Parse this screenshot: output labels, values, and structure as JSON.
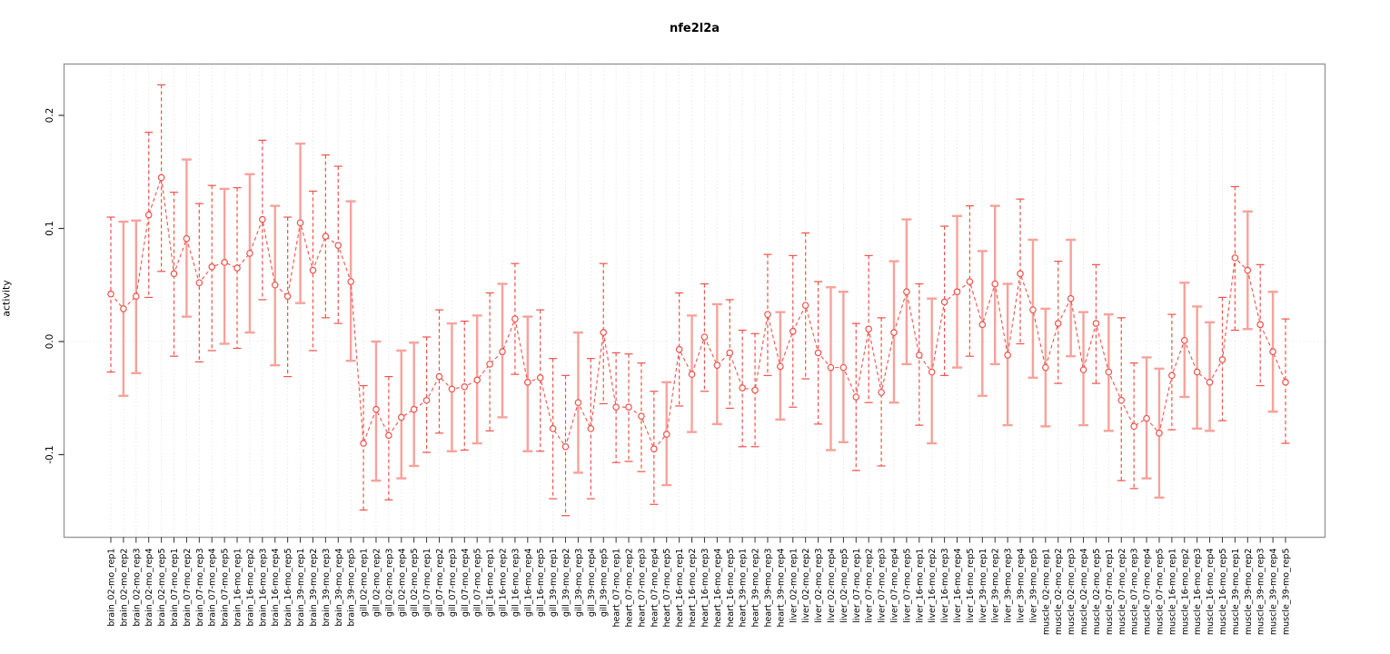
{
  "colors": {
    "series": "#F0524A",
    "series_light": "#F7A29B",
    "frame": "#999999",
    "axis": "#333333",
    "grid": "#DEDEDE",
    "zero_line": "#E3E3E3",
    "background": "#FFFFFF",
    "text": "#000000"
  },
  "chart_data": {
    "type": "scatter",
    "title": "nfe2l2a",
    "xlabel": "",
    "ylabel": "activity",
    "ylim": [
      -0.173,
      0.245
    ],
    "yticks": [
      -0.1,
      0.0,
      0.1,
      0.2
    ],
    "ytick_labels": [
      "-0.1",
      "0.0",
      "0.1",
      "0.2"
    ],
    "grid": "vertical dotted line per category; dotted horizontal line at y=0",
    "legend": "none",
    "error_bars": true,
    "series_style": "open red circles connected by dashed red line, vertical error bars with end caps",
    "points": [
      {
        "label": "brain_02-mo_rep1",
        "value": 0.042,
        "lo": -0.027,
        "hi": 0.11,
        "bar": "dashed"
      },
      {
        "label": "brain_02-mo_rep2",
        "value": 0.029,
        "lo": -0.048,
        "hi": 0.106,
        "bar": "light"
      },
      {
        "label": "brain_02-mo_rep3",
        "value": 0.04,
        "lo": -0.028,
        "hi": 0.107,
        "bar": "light"
      },
      {
        "label": "brain_02-mo_rep4",
        "value": 0.112,
        "lo": 0.039,
        "hi": 0.185,
        "bar": "dashed"
      },
      {
        "label": "brain_02-mo_rep5",
        "value": 0.145,
        "lo": 0.062,
        "hi": 0.227,
        "bar": "dashed"
      },
      {
        "label": "brain_07-mo_rep1",
        "value": 0.06,
        "lo": -0.013,
        "hi": 0.132,
        "bar": "dashed"
      },
      {
        "label": "brain_07-mo_rep2",
        "value": 0.091,
        "lo": 0.022,
        "hi": 0.161,
        "bar": "light"
      },
      {
        "label": "brain_07-mo_rep3",
        "value": 0.052,
        "lo": -0.018,
        "hi": 0.122,
        "bar": "dashed"
      },
      {
        "label": "brain_07-mo_rep4",
        "value": 0.066,
        "lo": -0.008,
        "hi": 0.138,
        "bar": "dashed"
      },
      {
        "label": "brain_07-mo_rep5",
        "value": 0.07,
        "lo": -0.002,
        "hi": 0.135,
        "bar": "light"
      },
      {
        "label": "brain_16-mo_rep1",
        "value": 0.065,
        "lo": -0.006,
        "hi": 0.136,
        "bar": "dashed"
      },
      {
        "label": "brain_16-mo_rep2",
        "value": 0.078,
        "lo": 0.008,
        "hi": 0.148,
        "bar": "light"
      },
      {
        "label": "brain_16-mo_rep3",
        "value": 0.108,
        "lo": 0.037,
        "hi": 0.178,
        "bar": "dashed"
      },
      {
        "label": "brain_16-mo_rep4",
        "value": 0.05,
        "lo": -0.021,
        "hi": 0.12,
        "bar": "light"
      },
      {
        "label": "brain_16-mo_rep5",
        "value": 0.04,
        "lo": -0.031,
        "hi": 0.11,
        "bar": "dashed"
      },
      {
        "label": "brain_39-mo_rep1",
        "value": 0.105,
        "lo": 0.034,
        "hi": 0.175,
        "bar": "light"
      },
      {
        "label": "brain_39-mo_rep2",
        "value": 0.063,
        "lo": -0.008,
        "hi": 0.133,
        "bar": "dashed"
      },
      {
        "label": "brain_39-mo_rep3",
        "value": 0.093,
        "lo": 0.021,
        "hi": 0.165,
        "bar": "dashed"
      },
      {
        "label": "brain_39-mo_rep4",
        "value": 0.085,
        "lo": 0.016,
        "hi": 0.155,
        "bar": "dashed"
      },
      {
        "label": "brain_39-mo_rep5",
        "value": 0.053,
        "lo": -0.017,
        "hi": 0.124,
        "bar": "light"
      },
      {
        "label": "gill_02-mo_rep1",
        "value": -0.09,
        "lo": -0.149,
        "hi": -0.039,
        "bar": "dashed"
      },
      {
        "label": "gill_02-mo_rep2",
        "value": -0.06,
        "lo": -0.123,
        "hi": 0.0,
        "bar": "light"
      },
      {
        "label": "gill_02-mo_rep3",
        "value": -0.083,
        "lo": -0.14,
        "hi": -0.031,
        "bar": "dashed"
      },
      {
        "label": "gill_02-mo_rep4",
        "value": -0.067,
        "lo": -0.121,
        "hi": -0.008,
        "bar": "light"
      },
      {
        "label": "gill_02-mo_rep5",
        "value": -0.06,
        "lo": -0.11,
        "hi": -0.001,
        "bar": "light"
      },
      {
        "label": "gill_07-mo_rep1",
        "value": -0.052,
        "lo": -0.098,
        "hi": 0.004,
        "bar": "dashed"
      },
      {
        "label": "gill_07-mo_rep2",
        "value": -0.031,
        "lo": -0.081,
        "hi": 0.028,
        "bar": "dashed"
      },
      {
        "label": "gill_07-mo_rep3",
        "value": -0.042,
        "lo": -0.097,
        "hi": 0.016,
        "bar": "light"
      },
      {
        "label": "gill_07-mo_rep4",
        "value": -0.04,
        "lo": -0.096,
        "hi": 0.018,
        "bar": "dashed"
      },
      {
        "label": "gill_07-mo_rep5",
        "value": -0.034,
        "lo": -0.09,
        "hi": 0.023,
        "bar": "light"
      },
      {
        "label": "gill_16-mo_rep1",
        "value": -0.02,
        "lo": -0.079,
        "hi": 0.043,
        "bar": "dashed"
      },
      {
        "label": "gill_16-mo_rep2",
        "value": -0.009,
        "lo": -0.067,
        "hi": 0.051,
        "bar": "light"
      },
      {
        "label": "gill_16-mo_rep3",
        "value": 0.02,
        "lo": -0.029,
        "hi": 0.069,
        "bar": "dashed"
      },
      {
        "label": "gill_16-mo_rep4",
        "value": -0.036,
        "lo": -0.097,
        "hi": 0.022,
        "bar": "light"
      },
      {
        "label": "gill_16-mo_rep5",
        "value": -0.032,
        "lo": -0.097,
        "hi": 0.028,
        "bar": "dashed"
      },
      {
        "label": "gill_39-mo_rep1",
        "value": -0.077,
        "lo": -0.139,
        "hi": -0.015,
        "bar": "dashed"
      },
      {
        "label": "gill_39-mo_rep2",
        "value": -0.093,
        "lo": -0.154,
        "hi": -0.03,
        "bar": "dashed"
      },
      {
        "label": "gill_39-mo_rep3",
        "value": -0.054,
        "lo": -0.116,
        "hi": 0.008,
        "bar": "light"
      },
      {
        "label": "gill_39-mo_rep4",
        "value": -0.077,
        "lo": -0.139,
        "hi": -0.015,
        "bar": "dashed"
      },
      {
        "label": "gill_39-mo_rep5",
        "value": 0.008,
        "lo": -0.055,
        "hi": 0.069,
        "bar": "dashed"
      },
      {
        "label": "heart_07-mo_rep1",
        "value": -0.058,
        "lo": -0.107,
        "hi": -0.01,
        "bar": "dashed"
      },
      {
        "label": "heart_07-mo_rep2",
        "value": -0.058,
        "lo": -0.106,
        "hi": -0.011,
        "bar": "dashed"
      },
      {
        "label": "heart_07-mo_rep3",
        "value": -0.066,
        "lo": -0.115,
        "hi": -0.019,
        "bar": "dashed"
      },
      {
        "label": "heart_07-mo_rep4",
        "value": -0.095,
        "lo": -0.144,
        "hi": -0.044,
        "bar": "dashed"
      },
      {
        "label": "heart_07-mo_rep5",
        "value": -0.082,
        "lo": -0.127,
        "hi": -0.036,
        "bar": "light"
      },
      {
        "label": "heart_16-mo_rep1",
        "value": -0.007,
        "lo": -0.057,
        "hi": 0.043,
        "bar": "dashed"
      },
      {
        "label": "heart_16-mo_rep2",
        "value": -0.029,
        "lo": -0.08,
        "hi": 0.023,
        "bar": "light"
      },
      {
        "label": "heart_16-mo_rep3",
        "value": 0.004,
        "lo": -0.044,
        "hi": 0.051,
        "bar": "dashed"
      },
      {
        "label": "heart_16-mo_rep4",
        "value": -0.021,
        "lo": -0.073,
        "hi": 0.033,
        "bar": "light"
      },
      {
        "label": "heart_16-mo_rep5",
        "value": -0.01,
        "lo": -0.059,
        "hi": 0.037,
        "bar": "dashed"
      },
      {
        "label": "heart_39-mo_rep1",
        "value": -0.041,
        "lo": -0.093,
        "hi": 0.01,
        "bar": "dashed"
      },
      {
        "label": "heart_39-mo_rep2",
        "value": -0.043,
        "lo": -0.093,
        "hi": 0.007,
        "bar": "dashed"
      },
      {
        "label": "heart_39-mo_rep3",
        "value": 0.024,
        "lo": -0.03,
        "hi": 0.077,
        "bar": "dashed"
      },
      {
        "label": "heart_39-mo_rep4",
        "value": -0.022,
        "lo": -0.069,
        "hi": 0.026,
        "bar": "light"
      },
      {
        "label": "liver_02-mo_rep1",
        "value": 0.009,
        "lo": -0.058,
        "hi": 0.076,
        "bar": "dashed"
      },
      {
        "label": "liver_02-mo_rep2",
        "value": 0.032,
        "lo": -0.033,
        "hi": 0.096,
        "bar": "dashed"
      },
      {
        "label": "liver_02-mo_rep3",
        "value": -0.01,
        "lo": -0.073,
        "hi": 0.053,
        "bar": "dashed"
      },
      {
        "label": "liver_02-mo_rep4",
        "value": -0.023,
        "lo": -0.096,
        "hi": 0.048,
        "bar": "light"
      },
      {
        "label": "liver_02-mo_rep5",
        "value": -0.023,
        "lo": -0.089,
        "hi": 0.044,
        "bar": "light"
      },
      {
        "label": "liver_07-mo_rep1",
        "value": -0.049,
        "lo": -0.114,
        "hi": 0.016,
        "bar": "dashed"
      },
      {
        "label": "liver_07-mo_rep2",
        "value": 0.011,
        "lo": -0.054,
        "hi": 0.076,
        "bar": "dashed"
      },
      {
        "label": "liver_07-mo_rep3",
        "value": -0.045,
        "lo": -0.11,
        "hi": 0.021,
        "bar": "dashed"
      },
      {
        "label": "liver_07-mo_rep4",
        "value": 0.008,
        "lo": -0.054,
        "hi": 0.071,
        "bar": "light"
      },
      {
        "label": "liver_07-mo_rep5",
        "value": 0.044,
        "lo": -0.02,
        "hi": 0.108,
        "bar": "light"
      },
      {
        "label": "liver_16-mo_rep1",
        "value": -0.012,
        "lo": -0.074,
        "hi": 0.051,
        "bar": "dashed"
      },
      {
        "label": "liver_16-mo_rep2",
        "value": -0.027,
        "lo": -0.09,
        "hi": 0.038,
        "bar": "light"
      },
      {
        "label": "liver_16-mo_rep3",
        "value": 0.035,
        "lo": -0.03,
        "hi": 0.102,
        "bar": "dashed"
      },
      {
        "label": "liver_16-mo_rep4",
        "value": 0.044,
        "lo": -0.023,
        "hi": 0.111,
        "bar": "light"
      },
      {
        "label": "liver_16-mo_rep5",
        "value": 0.053,
        "lo": -0.013,
        "hi": 0.12,
        "bar": "dashed"
      },
      {
        "label": "liver_39-mo_rep1",
        "value": 0.015,
        "lo": -0.048,
        "hi": 0.08,
        "bar": "light"
      },
      {
        "label": "liver_39-mo_rep2",
        "value": 0.051,
        "lo": -0.02,
        "hi": 0.12,
        "bar": "light"
      },
      {
        "label": "liver_39-mo_rep3",
        "value": -0.012,
        "lo": -0.074,
        "hi": 0.051,
        "bar": "light"
      },
      {
        "label": "liver_39-mo_rep4",
        "value": 0.06,
        "lo": -0.002,
        "hi": 0.126,
        "bar": "dashed"
      },
      {
        "label": "liver_39-mo_rep5",
        "value": 0.028,
        "lo": -0.032,
        "hi": 0.09,
        "bar": "light"
      },
      {
        "label": "muscle_02-mo_rep1",
        "value": -0.023,
        "lo": -0.075,
        "hi": 0.029,
        "bar": "light"
      },
      {
        "label": "muscle_02-mo_rep2",
        "value": 0.016,
        "lo": -0.037,
        "hi": 0.071,
        "bar": "dashed"
      },
      {
        "label": "muscle_02-mo_rep3",
        "value": 0.038,
        "lo": -0.013,
        "hi": 0.09,
        "bar": "light"
      },
      {
        "label": "muscle_02-mo_rep4",
        "value": -0.025,
        "lo": -0.074,
        "hi": 0.026,
        "bar": "light"
      },
      {
        "label": "muscle_02-mo_rep5",
        "value": 0.016,
        "lo": -0.037,
        "hi": 0.068,
        "bar": "dashed"
      },
      {
        "label": "muscle_07-mo_rep1",
        "value": -0.027,
        "lo": -0.079,
        "hi": 0.024,
        "bar": "light"
      },
      {
        "label": "muscle_07-mo_rep2",
        "value": -0.052,
        "lo": -0.123,
        "hi": 0.021,
        "bar": "dashed"
      },
      {
        "label": "muscle_07-mo_rep3",
        "value": -0.075,
        "lo": -0.13,
        "hi": -0.019,
        "bar": "dashed"
      },
      {
        "label": "muscle_07-mo_rep4",
        "value": -0.068,
        "lo": -0.121,
        "hi": -0.014,
        "bar": "light"
      },
      {
        "label": "muscle_07-mo_rep5",
        "value": -0.081,
        "lo": -0.138,
        "hi": -0.024,
        "bar": "light"
      },
      {
        "label": "muscle_16-mo_rep1",
        "value": -0.03,
        "lo": -0.078,
        "hi": 0.024,
        "bar": "dashed"
      },
      {
        "label": "muscle_16-mo_rep2",
        "value": 0.001,
        "lo": -0.049,
        "hi": 0.052,
        "bar": "light"
      },
      {
        "label": "muscle_16-mo_rep3",
        "value": -0.027,
        "lo": -0.077,
        "hi": 0.031,
        "bar": "light"
      },
      {
        "label": "muscle_16-mo_rep4",
        "value": -0.036,
        "lo": -0.079,
        "hi": 0.017,
        "bar": "light"
      },
      {
        "label": "muscle_16-mo_rep5",
        "value": -0.016,
        "lo": -0.07,
        "hi": 0.039,
        "bar": "dashed"
      },
      {
        "label": "muscle_39-mo_rep1",
        "value": 0.074,
        "lo": 0.01,
        "hi": 0.137,
        "bar": "dashed"
      },
      {
        "label": "muscle_39-mo_rep2",
        "value": 0.063,
        "lo": 0.011,
        "hi": 0.115,
        "bar": "light"
      },
      {
        "label": "muscle_39-mo_rep3",
        "value": 0.015,
        "lo": -0.039,
        "hi": 0.068,
        "bar": "dashed"
      },
      {
        "label": "muscle_39-mo_rep4",
        "value": -0.009,
        "lo": -0.062,
        "hi": 0.044,
        "bar": "light"
      },
      {
        "label": "muscle_39-mo_rep5",
        "value": -0.036,
        "lo": -0.09,
        "hi": 0.02,
        "bar": "dashed"
      }
    ]
  }
}
